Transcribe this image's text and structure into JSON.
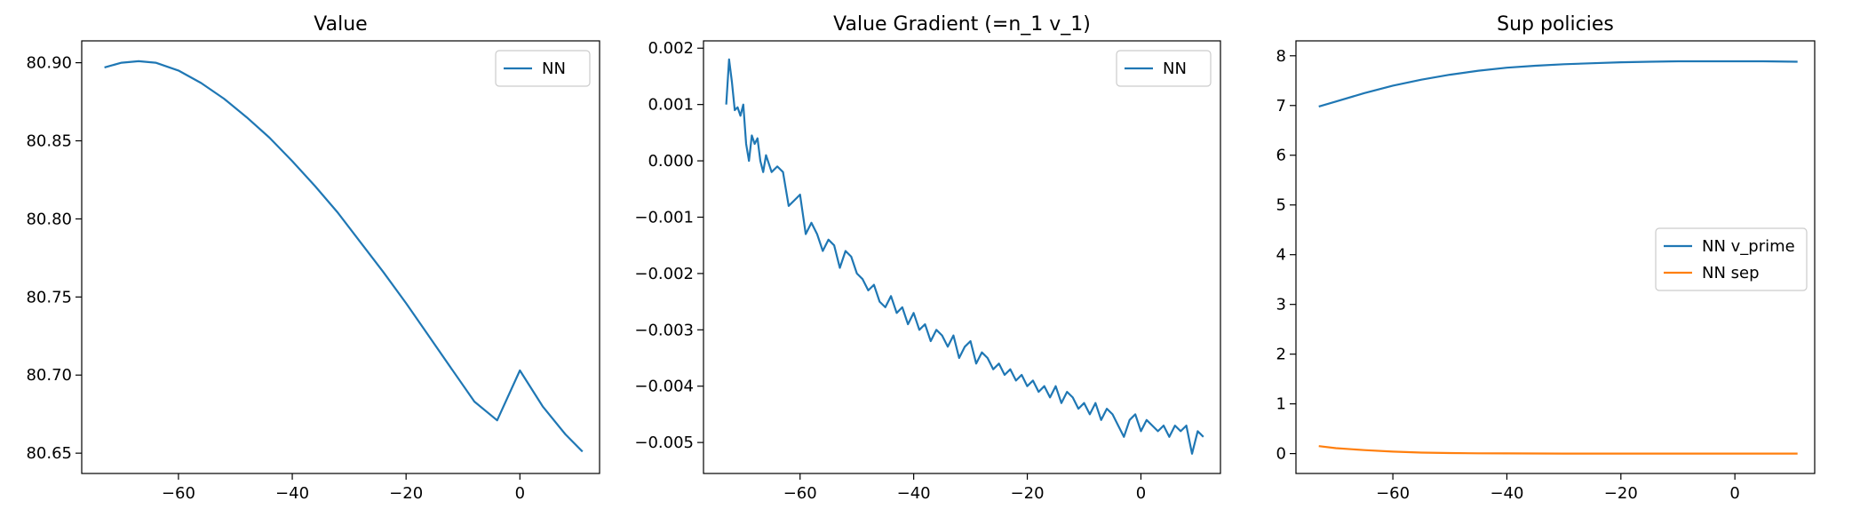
{
  "colors": {
    "blue": "#1f77b4",
    "orange": "#ff7f0e"
  },
  "chart_data": [
    {
      "type": "line",
      "title": "Value",
      "xlabel": "",
      "ylabel": "",
      "xlim": [
        -77,
        14
      ],
      "ylim": [
        80.637,
        80.914
      ],
      "xticks": [
        -60,
        -40,
        -20,
        0
      ],
      "yticks": [
        80.65,
        80.7,
        80.75,
        80.8,
        80.85,
        80.9
      ],
      "ytick_labels": [
        "80.65",
        "80.70",
        "80.75",
        "80.80",
        "80.85",
        "80.90"
      ],
      "legend": {
        "placement": "top-right",
        "entries": [
          "NN"
        ]
      },
      "series": [
        {
          "name": "NN",
          "color": "#1f77b4",
          "x": [
            -73,
            -70,
            -67,
            -64,
            -60,
            -56,
            -52,
            -48,
            -44,
            -40,
            -36,
            -32,
            -28,
            -24,
            -20,
            -16,
            -12,
            -8,
            -4,
            0,
            4,
            8,
            11
          ],
          "y": [
            80.897,
            80.9,
            80.901,
            80.9,
            80.895,
            80.887,
            80.877,
            80.865,
            80.852,
            80.837,
            80.821,
            80.804,
            80.785,
            80.766,
            80.746,
            80.725,
            80.704,
            80.683,
            80.671,
            80.703,
            80.68,
            80.662,
            80.651
          ]
        }
      ]
    },
    {
      "type": "line",
      "title": "Value Gradient (=n_1 v_1)",
      "xlabel": "",
      "ylabel": "",
      "xlim": [
        -77,
        14
      ],
      "ylim": [
        -0.00555,
        0.00213
      ],
      "xticks": [
        -60,
        -40,
        -20,
        0
      ],
      "yticks": [
        -0.005,
        -0.004,
        -0.003,
        -0.002,
        -0.001,
        0.0,
        0.001,
        0.002
      ],
      "ytick_labels": [
        "−0.005",
        "−0.004",
        "−0.003",
        "−0.002",
        "−0.001",
        "0.000",
        "0.001",
        "0.002"
      ],
      "legend": {
        "placement": "top-right",
        "entries": [
          "NN"
        ]
      },
      "series": [
        {
          "name": "NN",
          "color": "#1f77b4",
          "x": [
            -73,
            -72.5,
            -72,
            -71.5,
            -71,
            -70.5,
            -70,
            -69.5,
            -69,
            -68.5,
            -68,
            -67.5,
            -67,
            -66.5,
            -66,
            -65,
            -64,
            -63,
            -62,
            -61,
            -60,
            -59,
            -58,
            -57,
            -56,
            -55,
            -54,
            -53,
            -52,
            -51,
            -50,
            -49,
            -48,
            -47,
            -46,
            -45,
            -44,
            -43,
            -42,
            -41,
            -40,
            -39,
            -38,
            -37,
            -36,
            -35,
            -34,
            -33,
            -32,
            -31,
            -30,
            -29,
            -28,
            -27,
            -26,
            -25,
            -24,
            -23,
            -22,
            -21,
            -20,
            -19,
            -18,
            -17,
            -16,
            -15,
            -14,
            -13,
            -12,
            -11,
            -10,
            -9,
            -8,
            -7,
            -6,
            -5,
            -4,
            -3,
            -2,
            -1,
            0,
            1,
            2,
            3,
            4,
            5,
            6,
            7,
            8,
            9,
            10,
            11
          ],
          "y": [
            0.001,
            0.0018,
            0.0014,
            0.0009,
            0.00095,
            0.0008,
            0.001,
            0.0003,
            0.0,
            0.00045,
            0.0003,
            0.0004,
            0.0,
            -0.0002,
            0.0001,
            -0.0002,
            -0.0001,
            -0.0002,
            -0.0008,
            -0.0007,
            -0.0006,
            -0.0013,
            -0.0011,
            -0.0013,
            -0.0016,
            -0.0014,
            -0.0015,
            -0.0019,
            -0.0016,
            -0.0017,
            -0.002,
            -0.0021,
            -0.0023,
            -0.0022,
            -0.0025,
            -0.0026,
            -0.0024,
            -0.0027,
            -0.0026,
            -0.0029,
            -0.0027,
            -0.003,
            -0.0029,
            -0.0032,
            -0.003,
            -0.0031,
            -0.0033,
            -0.0031,
            -0.0035,
            -0.0033,
            -0.0032,
            -0.0036,
            -0.0034,
            -0.0035,
            -0.0037,
            -0.0036,
            -0.0038,
            -0.0037,
            -0.0039,
            -0.0038,
            -0.004,
            -0.0039,
            -0.0041,
            -0.004,
            -0.0042,
            -0.004,
            -0.0043,
            -0.0041,
            -0.0042,
            -0.0044,
            -0.0043,
            -0.0045,
            -0.0043,
            -0.0046,
            -0.0044,
            -0.0045,
            -0.0047,
            -0.0049,
            -0.0046,
            -0.0045,
            -0.0048,
            -0.0046,
            -0.0047,
            -0.0048,
            -0.0047,
            -0.0049,
            -0.0047,
            -0.0048,
            -0.0047,
            -0.0052,
            -0.0048,
            -0.0049
          ]
        }
      ]
    },
    {
      "type": "line",
      "title": "Sup policies",
      "xlabel": "",
      "ylabel": "",
      "xlim": [
        -77,
        14
      ],
      "ylim": [
        -0.4,
        8.3
      ],
      "xticks": [
        -60,
        -40,
        -20,
        0
      ],
      "yticks": [
        0,
        1,
        2,
        3,
        4,
        5,
        6,
        7,
        8
      ],
      "ytick_labels": [
        "0",
        "1",
        "2",
        "3",
        "4",
        "5",
        "6",
        "7",
        "8"
      ],
      "legend": {
        "placement": "center-right",
        "entries": [
          "NN v_prime",
          "NN sep"
        ]
      },
      "series": [
        {
          "name": "NN v_prime",
          "color": "#1f77b4",
          "x": [
            -73,
            -70,
            -65,
            -60,
            -55,
            -50,
            -45,
            -40,
            -35,
            -30,
            -25,
            -20,
            -15,
            -10,
            -5,
            0,
            5,
            11
          ],
          "y": [
            6.98,
            7.08,
            7.25,
            7.4,
            7.52,
            7.62,
            7.7,
            7.76,
            7.8,
            7.83,
            7.85,
            7.87,
            7.88,
            7.89,
            7.89,
            7.89,
            7.89,
            7.88
          ]
        },
        {
          "name": "NN sep",
          "color": "#ff7f0e",
          "x": [
            -73,
            -70,
            -65,
            -60,
            -55,
            -50,
            -45,
            -40,
            -30,
            -20,
            -10,
            0,
            11
          ],
          "y": [
            0.15,
            0.11,
            0.07,
            0.04,
            0.02,
            0.01,
            0.005,
            0.003,
            0.001,
            0.0,
            0.0,
            0.0,
            0.0
          ]
        }
      ]
    }
  ]
}
